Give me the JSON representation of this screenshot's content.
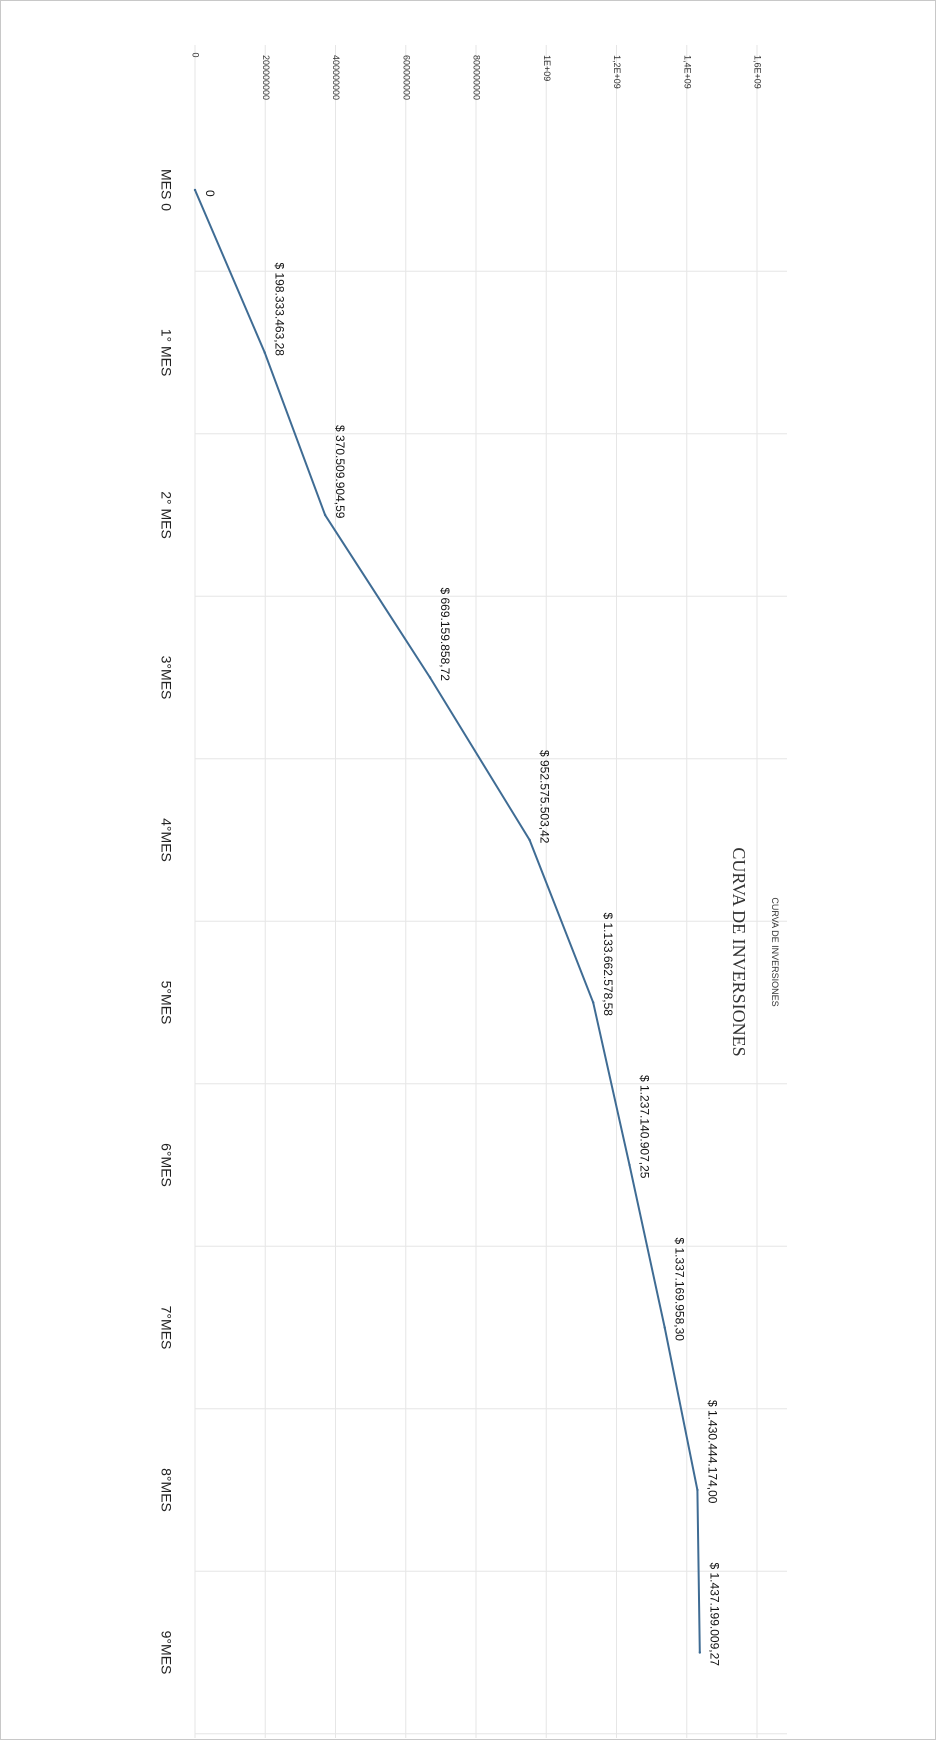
{
  "chart_data": {
    "type": "line",
    "orientation": "rotated-90-clockwise",
    "title": "CURVA DE INVERSIONES",
    "subtitle": "CURVA DE INVERSIONES",
    "categories": [
      "MES 0",
      "1° MES",
      "2° MES",
      "3°MES",
      "4°MES",
      "5°MES",
      "6°MES",
      "7°MES",
      "8°MES",
      "9°MES"
    ],
    "values": [
      0,
      198333463.28,
      370509904.59,
      669159858.72,
      952575503.42,
      1133662578.58,
      1237140907.25,
      1337169958.3,
      1430444174.0,
      1437199009.27
    ],
    "data_labels": [
      "0",
      "$ 198.333.463,28",
      "$ 370.509.904,59",
      "$ 669.159.858,72",
      "$ 952.575.503,42",
      "$ 1.133.662.578,58",
      "$ 1.237.140.907,25",
      "$ 1.337.169.958,30",
      "$ 1.430.444.174,00",
      "$ 1.437.199.009,27"
    ],
    "y_ticks": [
      0,
      200000000,
      400000000,
      600000000,
      800000000,
      1000000000,
      1200000000,
      1400000000,
      1600000000
    ],
    "y_tick_labels": [
      "0",
      "200000000",
      "400000000",
      "600000000",
      "800000000",
      "1E+09",
      "1,2E+09",
      "1,4E+09",
      "1,6E+09"
    ],
    "ylim": [
      0,
      1600000000
    ],
    "grid": true,
    "line_color": "#3f6c94",
    "grid_color": "#e6e6e6"
  }
}
